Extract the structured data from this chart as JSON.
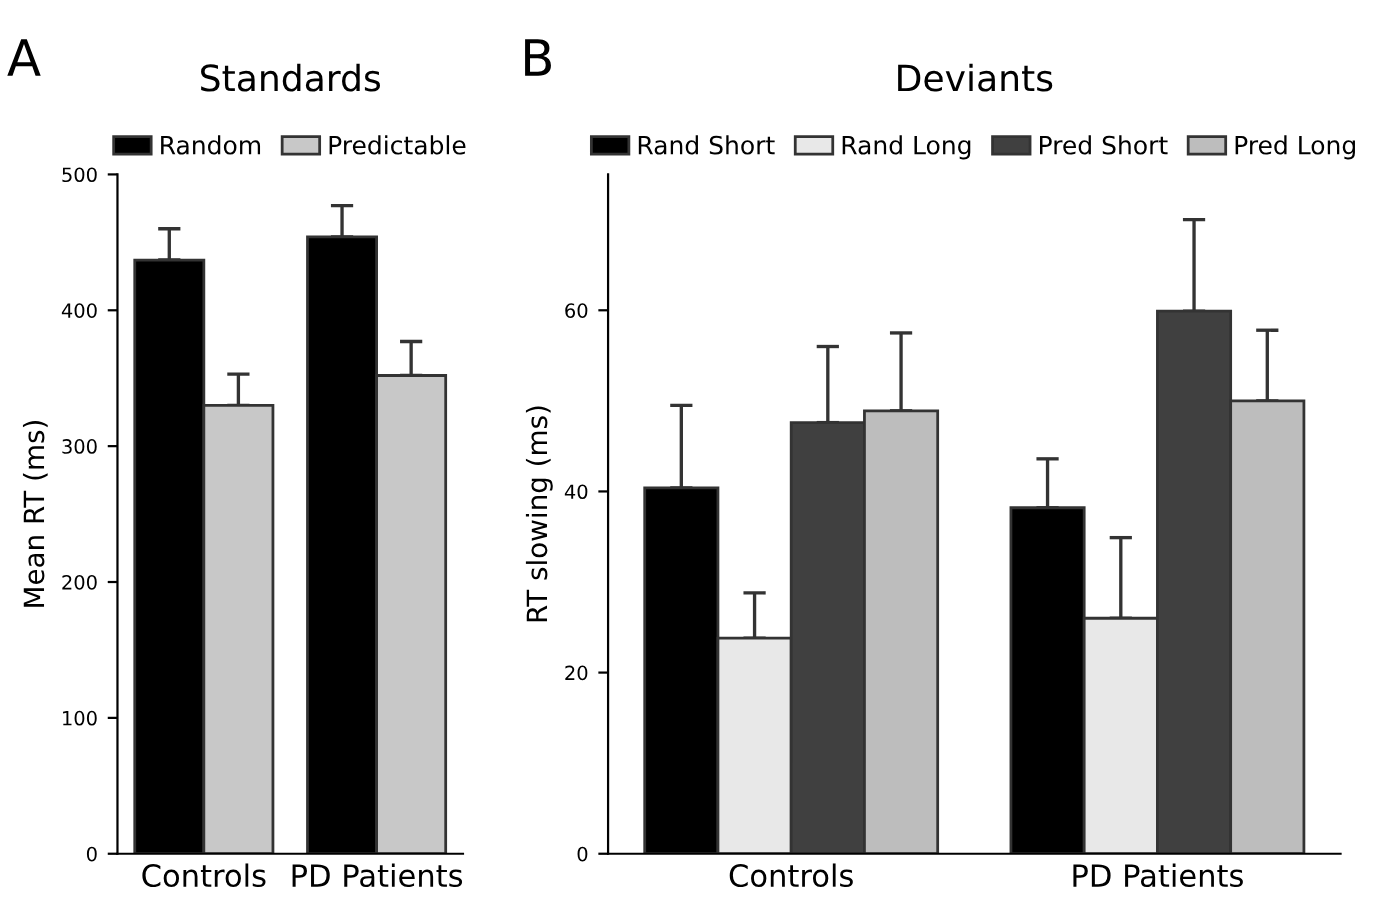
{
  "chart_data": [
    {
      "type": "bar",
      "title": "Standards",
      "ylabel": "Mean RT (ms)",
      "annotations": [
        "A"
      ],
      "categories": [
        "Controls",
        "PD Patients"
      ],
      "ylim": [
        0,
        500
      ],
      "yticks": [
        0,
        100,
        200,
        300,
        400,
        500
      ],
      "legend": "top",
      "grid": false,
      "series": [
        {
          "name": "Random",
          "color": "#000000",
          "values": [
            437,
            454
          ],
          "errors": [
            [
              437,
              460
            ],
            [
              454,
              477
            ]
          ]
        },
        {
          "name": "Predictable",
          "color": "#c8c8c8",
          "values": [
            330,
            352
          ],
          "errors": [
            [
              330,
              353
            ],
            [
              352,
              377
            ]
          ]
        }
      ]
    },
    {
      "type": "bar",
      "title": "Deviants",
      "ylabel": "RT slowing (ms)",
      "annotations": [
        "B"
      ],
      "categories": [
        "Controls",
        "PD Patients"
      ],
      "ylim": [
        0,
        75
      ],
      "yticks": [
        0,
        20,
        40,
        60
      ],
      "legend": "top",
      "grid": false,
      "series": [
        {
          "name": "Rand Short",
          "color": "#000000",
          "values": [
            40.4,
            38.2
          ],
          "errors": [
            [
              40.4,
              49.5
            ],
            [
              38.2,
              43.6
            ]
          ]
        },
        {
          "name": "Rand Long",
          "color": "#e8e8e8",
          "values": [
            23.8,
            26.0
          ],
          "errors": [
            [
              23.8,
              28.8
            ],
            [
              26.0,
              34.9
            ]
          ]
        },
        {
          "name": "Pred Short",
          "color": "#404040",
          "values": [
            47.6,
            59.9
          ],
          "errors": [
            [
              47.6,
              56.0
            ],
            [
              59.9,
              70.0
            ]
          ]
        },
        {
          "name": "Pred Long",
          "color": "#bdbdbd",
          "values": [
            48.9,
            50.0
          ],
          "errors": [
            [
              48.9,
              57.5
            ],
            [
              50.0,
              57.8
            ]
          ]
        }
      ]
    }
  ]
}
